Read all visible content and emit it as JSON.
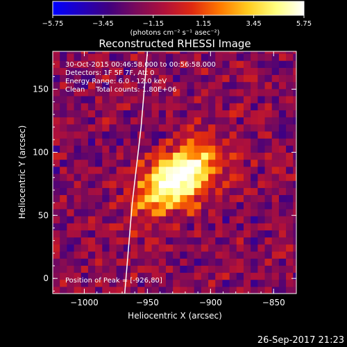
{
  "chart_data": {
    "type": "heatmap",
    "title": "Reconstructed RHESSI Image",
    "xlabel": "Heliocentric X (arcsec)",
    "ylabel": "Heliocentric Y (arcsec)",
    "xlim": [
      -1025,
      -832
    ],
    "ylim": [
      -12,
      180
    ],
    "x_ticks": [
      -1000,
      -950,
      -900,
      -850
    ],
    "x_tick_labels": [
      "−1000",
      "−950",
      "−900",
      "−850"
    ],
    "y_ticks": [
      0,
      50,
      100,
      150
    ],
    "y_tick_labels": [
      "0",
      "50",
      "100",
      "150"
    ],
    "colorbar": {
      "range": [
        -5.75,
        5.75
      ],
      "ticks": [
        -5.75,
        -3.45,
        -1.15,
        1.15,
        3.45,
        5.75
      ],
      "tick_labels": [
        "−5.75",
        "−3.45",
        "−1.15",
        "1.15",
        "3.45",
        "5.75"
      ],
      "unit_label": "(photons cm⁻² s⁻¹ asec⁻²)",
      "colormap": [
        "#0000ff",
        "#2000c0",
        "#400080",
        "#7a0a5a",
        "#b0103a",
        "#e02a10",
        "#ff7a00",
        "#ffcc20",
        "#ffff80",
        "#ffffff"
      ]
    },
    "peak": {
      "x": -926,
      "y": 80
    },
    "limb": [
      [
        -968,
        -12
      ],
      [
        -962,
        60
      ],
      [
        -955,
        120
      ],
      [
        -950,
        180
      ]
    ],
    "annotations": [
      "30-Oct-2015 00:46:58.000 to 00:56:58.000",
      "Detectors: 1F 5F 7F, Att 0",
      "Energy Range: 6.0 - 12.0 keV",
      "Clean     Total counts: 1.80E+06"
    ],
    "peak_label": "Position of Peak = [-926,80]"
  },
  "footer": {
    "date": "26-Sep-2017 21:23"
  }
}
